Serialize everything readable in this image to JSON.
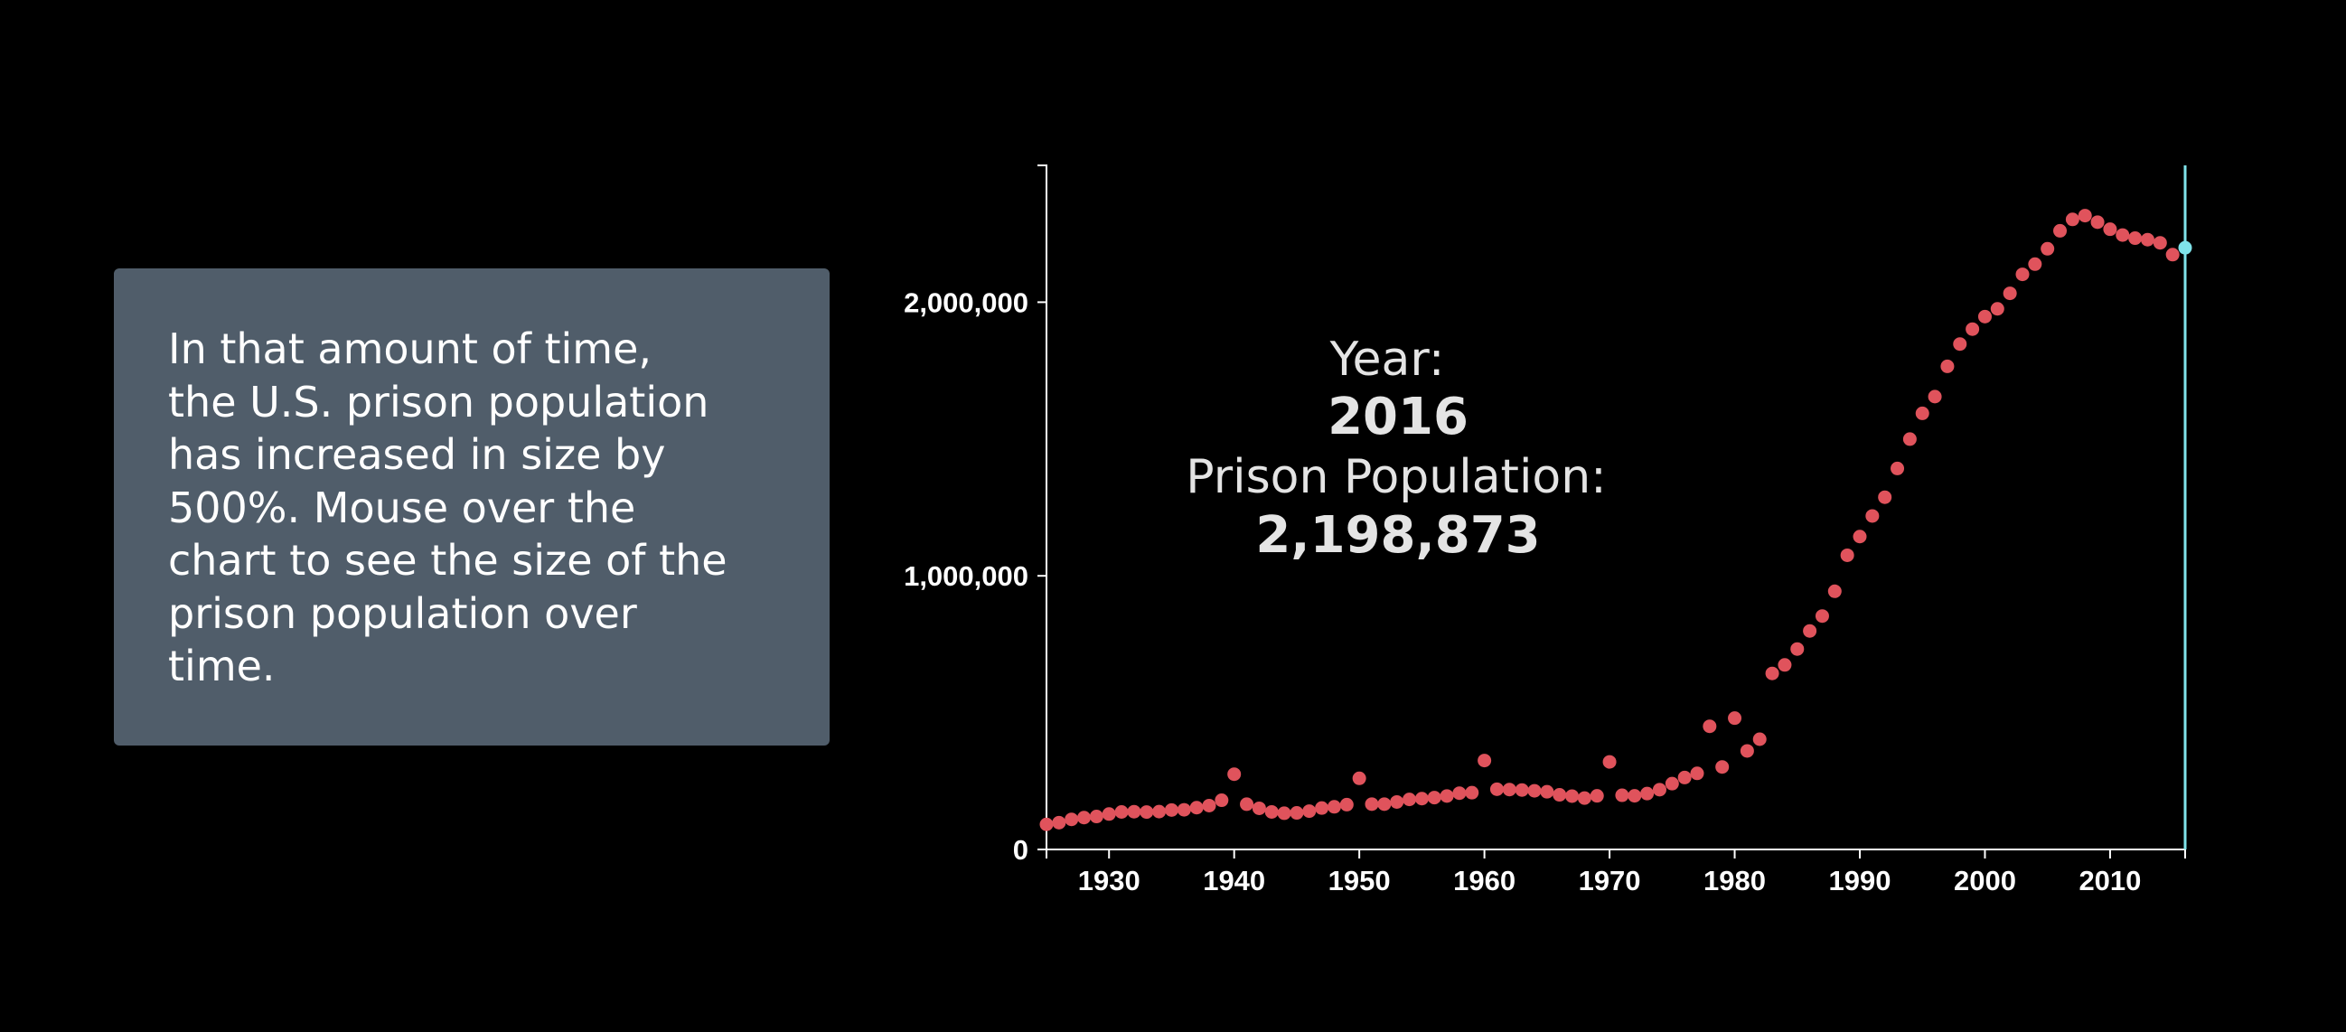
{
  "narrative": {
    "lines": [
      "In that amount of time,",
      "the U.S. prison population",
      "has increased in size by",
      "500%. Mouse over the",
      "chart to see the size of the",
      "prison population over",
      "time."
    ]
  },
  "readout": {
    "year_label": "Year:",
    "year_value": "2016",
    "population_label": "Prison Population:",
    "population_value": "2,198,873"
  },
  "colors": {
    "background": "#000000",
    "panel": "#505d6a",
    "dot": "#e0535c",
    "hover": "#7fe3ea",
    "axis": "#ffffff",
    "readout_text": "#e4e4e4"
  },
  "chart_data": {
    "type": "scatter",
    "title": "",
    "xlabel": "",
    "ylabel": "",
    "xlim": [
      1925,
      2016
    ],
    "ylim": [
      0,
      2500000
    ],
    "x_ticks": [
      1930,
      1940,
      1950,
      1960,
      1970,
      1980,
      1990,
      2000,
      2010
    ],
    "y_ticks": [
      0,
      1000000,
      2000000
    ],
    "y_tick_labels": [
      "0",
      "1,000,000",
      "2,000,000"
    ],
    "grid": false,
    "hover_year": 2016,
    "hover_value": 2198873,
    "series": [
      {
        "x": [
          1925,
          1926,
          1927,
          1928,
          1929,
          1930,
          1931,
          1932,
          1933,
          1934,
          1935,
          1936,
          1937,
          1938,
          1939,
          1940,
          1941,
          1942,
          1943,
          1944,
          1945,
          1946,
          1947,
          1948,
          1949,
          1950,
          1951,
          1952,
          1953,
          1954,
          1955,
          1956,
          1957,
          1958,
          1959,
          1960,
          1961,
          1962,
          1963,
          1964,
          1965,
          1966,
          1967,
          1968,
          1969,
          1970,
          1971,
          1972,
          1973,
          1974,
          1975,
          1976,
          1977,
          1978,
          1979,
          1980,
          1981,
          1982,
          1983,
          1984,
          1985,
          1986,
          1987,
          1988,
          1989,
          1990,
          1991,
          1992,
          1993,
          1994,
          1995,
          1996,
          1997,
          1998,
          1999,
          2000,
          2001,
          2002,
          2003,
          2004,
          2005,
          2006,
          2007,
          2008,
          2009,
          2010,
          2011,
          2012,
          2013,
          2014,
          2015,
          2016
        ],
        "y": [
          91669,
          97991,
          109983,
          116390,
          120496,
          129453,
          137082,
          137997,
          136810,
          138316,
          144180,
          145038,
          152741,
          160285,
          179818,
          275000,
          165439,
          150384,
          137220,
          132456,
          133649,
          140079,
          151304,
          155977,
          163749,
          260000,
          165680,
          165602,
          173579,
          182901,
          185780,
          189565,
          195414,
          205643,
          207446,
          325000,
          220149,
          218830,
          217283,
          214336,
          210895,
          199654,
          194896,
          187914,
          196007,
          320000,
          198061,
          196092,
          204211,
          218466,
          240593,
          262833,
          278141,
          450000,
          301470,
          480000,
          360029,
          402914,
          643262,
          674500,
          732500,
          798500,
          853000,
          943500,
          1075000,
          1143500,
          1218700,
          1287200,
          1392300,
          1499600,
          1593700,
          1655000,
          1765500,
          1847100,
          1901600,
          1947300,
          1975700,
          2032400,
          2101800,
          2139100,
          2195300,
          2260800,
          2302600,
          2316500,
          2292400,
          2266700,
          2245500,
          2234000,
          2228400,
          2217000,
          2173800,
          2198873
        ]
      }
    ]
  }
}
